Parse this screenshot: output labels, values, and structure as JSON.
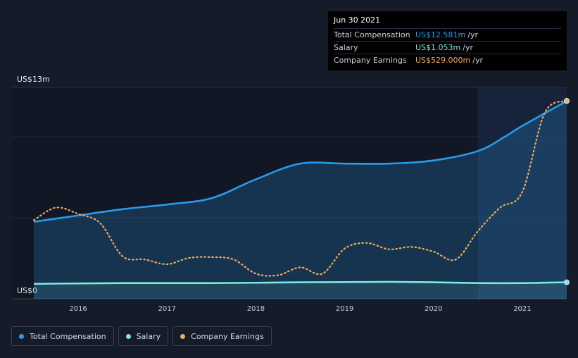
{
  "tooltip": {
    "date": "Jun 30 2021",
    "rows": [
      {
        "label": "Total Compensation",
        "value": "US$12.581m",
        "unit": "/yr",
        "color": "#2b9be8"
      },
      {
        "label": "Salary",
        "value": "US$1.053m",
        "unit": "/yr",
        "color": "#7ee8dc"
      },
      {
        "label": "Company Earnings",
        "value": "US$529.000m",
        "unit": "/yr",
        "color": "#f0ae5a"
      }
    ]
  },
  "legend": [
    {
      "label": "Total Compensation",
      "color": "#2b9be8"
    },
    {
      "label": "Salary",
      "color": "#7ee8dc"
    },
    {
      "label": "Company Earnings",
      "color": "#f0ae5a"
    }
  ],
  "chart_data": {
    "type": "line",
    "y_top_label": "US$13m",
    "y_bottom_label": "US$0",
    "ylim": [
      0,
      13
    ],
    "xlim": [
      2015.5,
      2021.5
    ],
    "x_ticks": [
      2016,
      2017,
      2018,
      2019,
      2020,
      2021
    ],
    "x_tick_labels": [
      "2016",
      "2017",
      "2018",
      "2019",
      "2020",
      "2021"
    ],
    "highlight_start": 2020.5,
    "series": [
      {
        "name": "Total Compensation",
        "color": "#2b9be8",
        "style": "solid-area",
        "points": [
          [
            2015.5,
            4.9
          ],
          [
            2016.0,
            5.3
          ],
          [
            2016.5,
            5.7
          ],
          [
            2017.0,
            6.0
          ],
          [
            2017.5,
            6.4
          ],
          [
            2018.0,
            7.6
          ],
          [
            2018.5,
            8.6
          ],
          [
            2019.0,
            8.6
          ],
          [
            2019.5,
            8.6
          ],
          [
            2020.0,
            8.8
          ],
          [
            2020.5,
            9.4
          ],
          [
            2020.8,
            10.3
          ],
          [
            2021.0,
            11.0
          ],
          [
            2021.5,
            12.581
          ]
        ]
      },
      {
        "name": "Salary",
        "color": "#7ee8dc",
        "style": "solid",
        "points": [
          [
            2015.5,
            0.95
          ],
          [
            2016.0,
            0.98
          ],
          [
            2016.5,
            1.0
          ],
          [
            2017.0,
            1.0
          ],
          [
            2017.5,
            1.0
          ],
          [
            2018.0,
            1.02
          ],
          [
            2018.5,
            1.05
          ],
          [
            2019.0,
            1.06
          ],
          [
            2019.5,
            1.08
          ],
          [
            2020.0,
            1.05
          ],
          [
            2020.5,
            1.0
          ],
          [
            2021.0,
            1.0
          ],
          [
            2021.5,
            1.053
          ]
        ]
      },
      {
        "name": "Company Earnings",
        "color": "#f0ae5a",
        "style": "dotted",
        "points": [
          [
            2015.5,
            5.0
          ],
          [
            2015.75,
            5.8
          ],
          [
            2016.0,
            5.4
          ],
          [
            2016.25,
            4.8
          ],
          [
            2016.5,
            2.7
          ],
          [
            2016.75,
            2.5
          ],
          [
            2017.0,
            2.2
          ],
          [
            2017.25,
            2.6
          ],
          [
            2017.5,
            2.65
          ],
          [
            2017.75,
            2.5
          ],
          [
            2018.0,
            1.6
          ],
          [
            2018.25,
            1.5
          ],
          [
            2018.5,
            2.0
          ],
          [
            2018.75,
            1.6
          ],
          [
            2019.0,
            3.2
          ],
          [
            2019.25,
            3.55
          ],
          [
            2019.5,
            3.15
          ],
          [
            2019.75,
            3.3
          ],
          [
            2020.0,
            3.0
          ],
          [
            2020.25,
            2.5
          ],
          [
            2020.5,
            4.3
          ],
          [
            2020.75,
            5.8
          ],
          [
            2021.0,
            6.8
          ],
          [
            2021.25,
            11.8
          ],
          [
            2021.5,
            12.6
          ]
        ]
      }
    ]
  }
}
